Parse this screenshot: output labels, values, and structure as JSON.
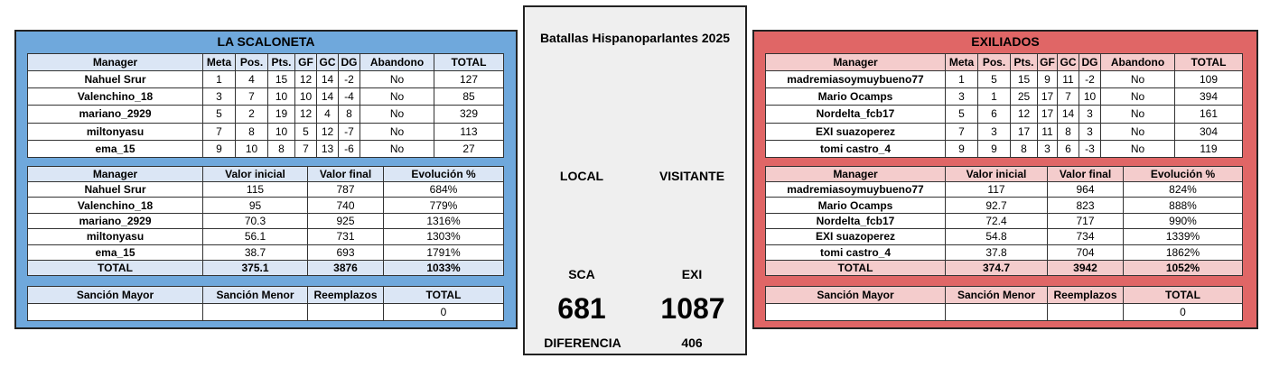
{
  "center": {
    "title": "Batallas Hispanoparlantes 2025",
    "local_label": "LOCAL",
    "visitor_label": "VISITANTE",
    "local_code": "SCA",
    "visitor_code": "EXI",
    "local_score": "681",
    "visitor_score": "1087",
    "diff_label": "DIFERENCIA",
    "diff_value": "406"
  },
  "left": {
    "title": "LA SCALONETA",
    "standings_headers": [
      "Manager",
      "Meta",
      "Pos.",
      "Pts.",
      "GF",
      "GC",
      "DG",
      "Abandono",
      "TOTAL"
    ],
    "standings": [
      [
        "Nahuel Srur",
        "1",
        "4",
        "15",
        "12",
        "14",
        "-2",
        "No",
        "127"
      ],
      [
        "Valenchino_18",
        "3",
        "7",
        "10",
        "10",
        "14",
        "-4",
        "No",
        "85"
      ],
      [
        "mariano_2929",
        "5",
        "2",
        "19",
        "12",
        "4",
        "8",
        "No",
        "329"
      ],
      [
        "miltonyasu",
        "7",
        "8",
        "10",
        "5",
        "12",
        "-7",
        "No",
        "113"
      ],
      [
        "ema_15",
        "9",
        "10",
        "8",
        "7",
        "13",
        "-6",
        "No",
        "27"
      ]
    ],
    "value_headers": [
      "Manager",
      "Valor inicial",
      "Valor final",
      "Evolución %"
    ],
    "values": [
      [
        "Nahuel Srur",
        "115",
        "787",
        "684%"
      ],
      [
        "Valenchino_18",
        "95",
        "740",
        "779%"
      ],
      [
        "mariano_2929",
        "70.3",
        "925",
        "1316%"
      ],
      [
        "miltonyasu",
        "56.1",
        "731",
        "1303%"
      ],
      [
        "ema_15",
        "38.7",
        "693",
        "1791%"
      ]
    ],
    "value_total": [
      "TOTAL",
      "375.1",
      "3876",
      "1033%"
    ],
    "sanction_headers": [
      "Sanción Mayor",
      "Sanción Menor",
      "Reemplazos",
      "TOTAL"
    ],
    "sanction_values": [
      "",
      "",
      "",
      "0"
    ]
  },
  "right": {
    "title": "EXILIADOS",
    "standings_headers": [
      "Manager",
      "Meta",
      "Pos.",
      "Pts.",
      "GF",
      "GC",
      "DG",
      "Abandono",
      "TOTAL"
    ],
    "standings": [
      [
        "madremiasoymuybueno77",
        "1",
        "5",
        "15",
        "9",
        "11",
        "-2",
        "No",
        "109"
      ],
      [
        "Mario Ocamps",
        "3",
        "1",
        "25",
        "17",
        "7",
        "10",
        "No",
        "394"
      ],
      [
        "Nordelta_fcb17",
        "5",
        "6",
        "12",
        "17",
        "14",
        "3",
        "No",
        "161"
      ],
      [
        "EXI suazoperez",
        "7",
        "3",
        "17",
        "11",
        "8",
        "3",
        "No",
        "304"
      ],
      [
        "tomi castro_4",
        "9",
        "9",
        "8",
        "3",
        "6",
        "-3",
        "No",
        "119"
      ]
    ],
    "value_headers": [
      "Manager",
      "Valor inicial",
      "Valor final",
      "Evolución %"
    ],
    "values": [
      [
        "madremiasoymuybueno77",
        "117",
        "964",
        "824%"
      ],
      [
        "Mario Ocamps",
        "92.7",
        "823",
        "888%"
      ],
      [
        "Nordelta_fcb17",
        "72.4",
        "717",
        "990%"
      ],
      [
        "EXI suazoperez",
        "54.8",
        "734",
        "1339%"
      ],
      [
        "tomi castro_4",
        "37.8",
        "704",
        "1862%"
      ]
    ],
    "value_total": [
      "TOTAL",
      "374.7",
      "3942",
      "1052%"
    ],
    "sanction_headers": [
      "Sanción Mayor",
      "Sanción Menor",
      "Reemplazos",
      "TOTAL"
    ],
    "sanction_values": [
      "",
      "",
      "",
      "0"
    ]
  },
  "colors": {
    "left_panel": "#6fa8dc",
    "right_panel": "#e06666",
    "center_panel": "#efefef",
    "left_header": "#dbe6f5",
    "right_header": "#f4cccc"
  }
}
